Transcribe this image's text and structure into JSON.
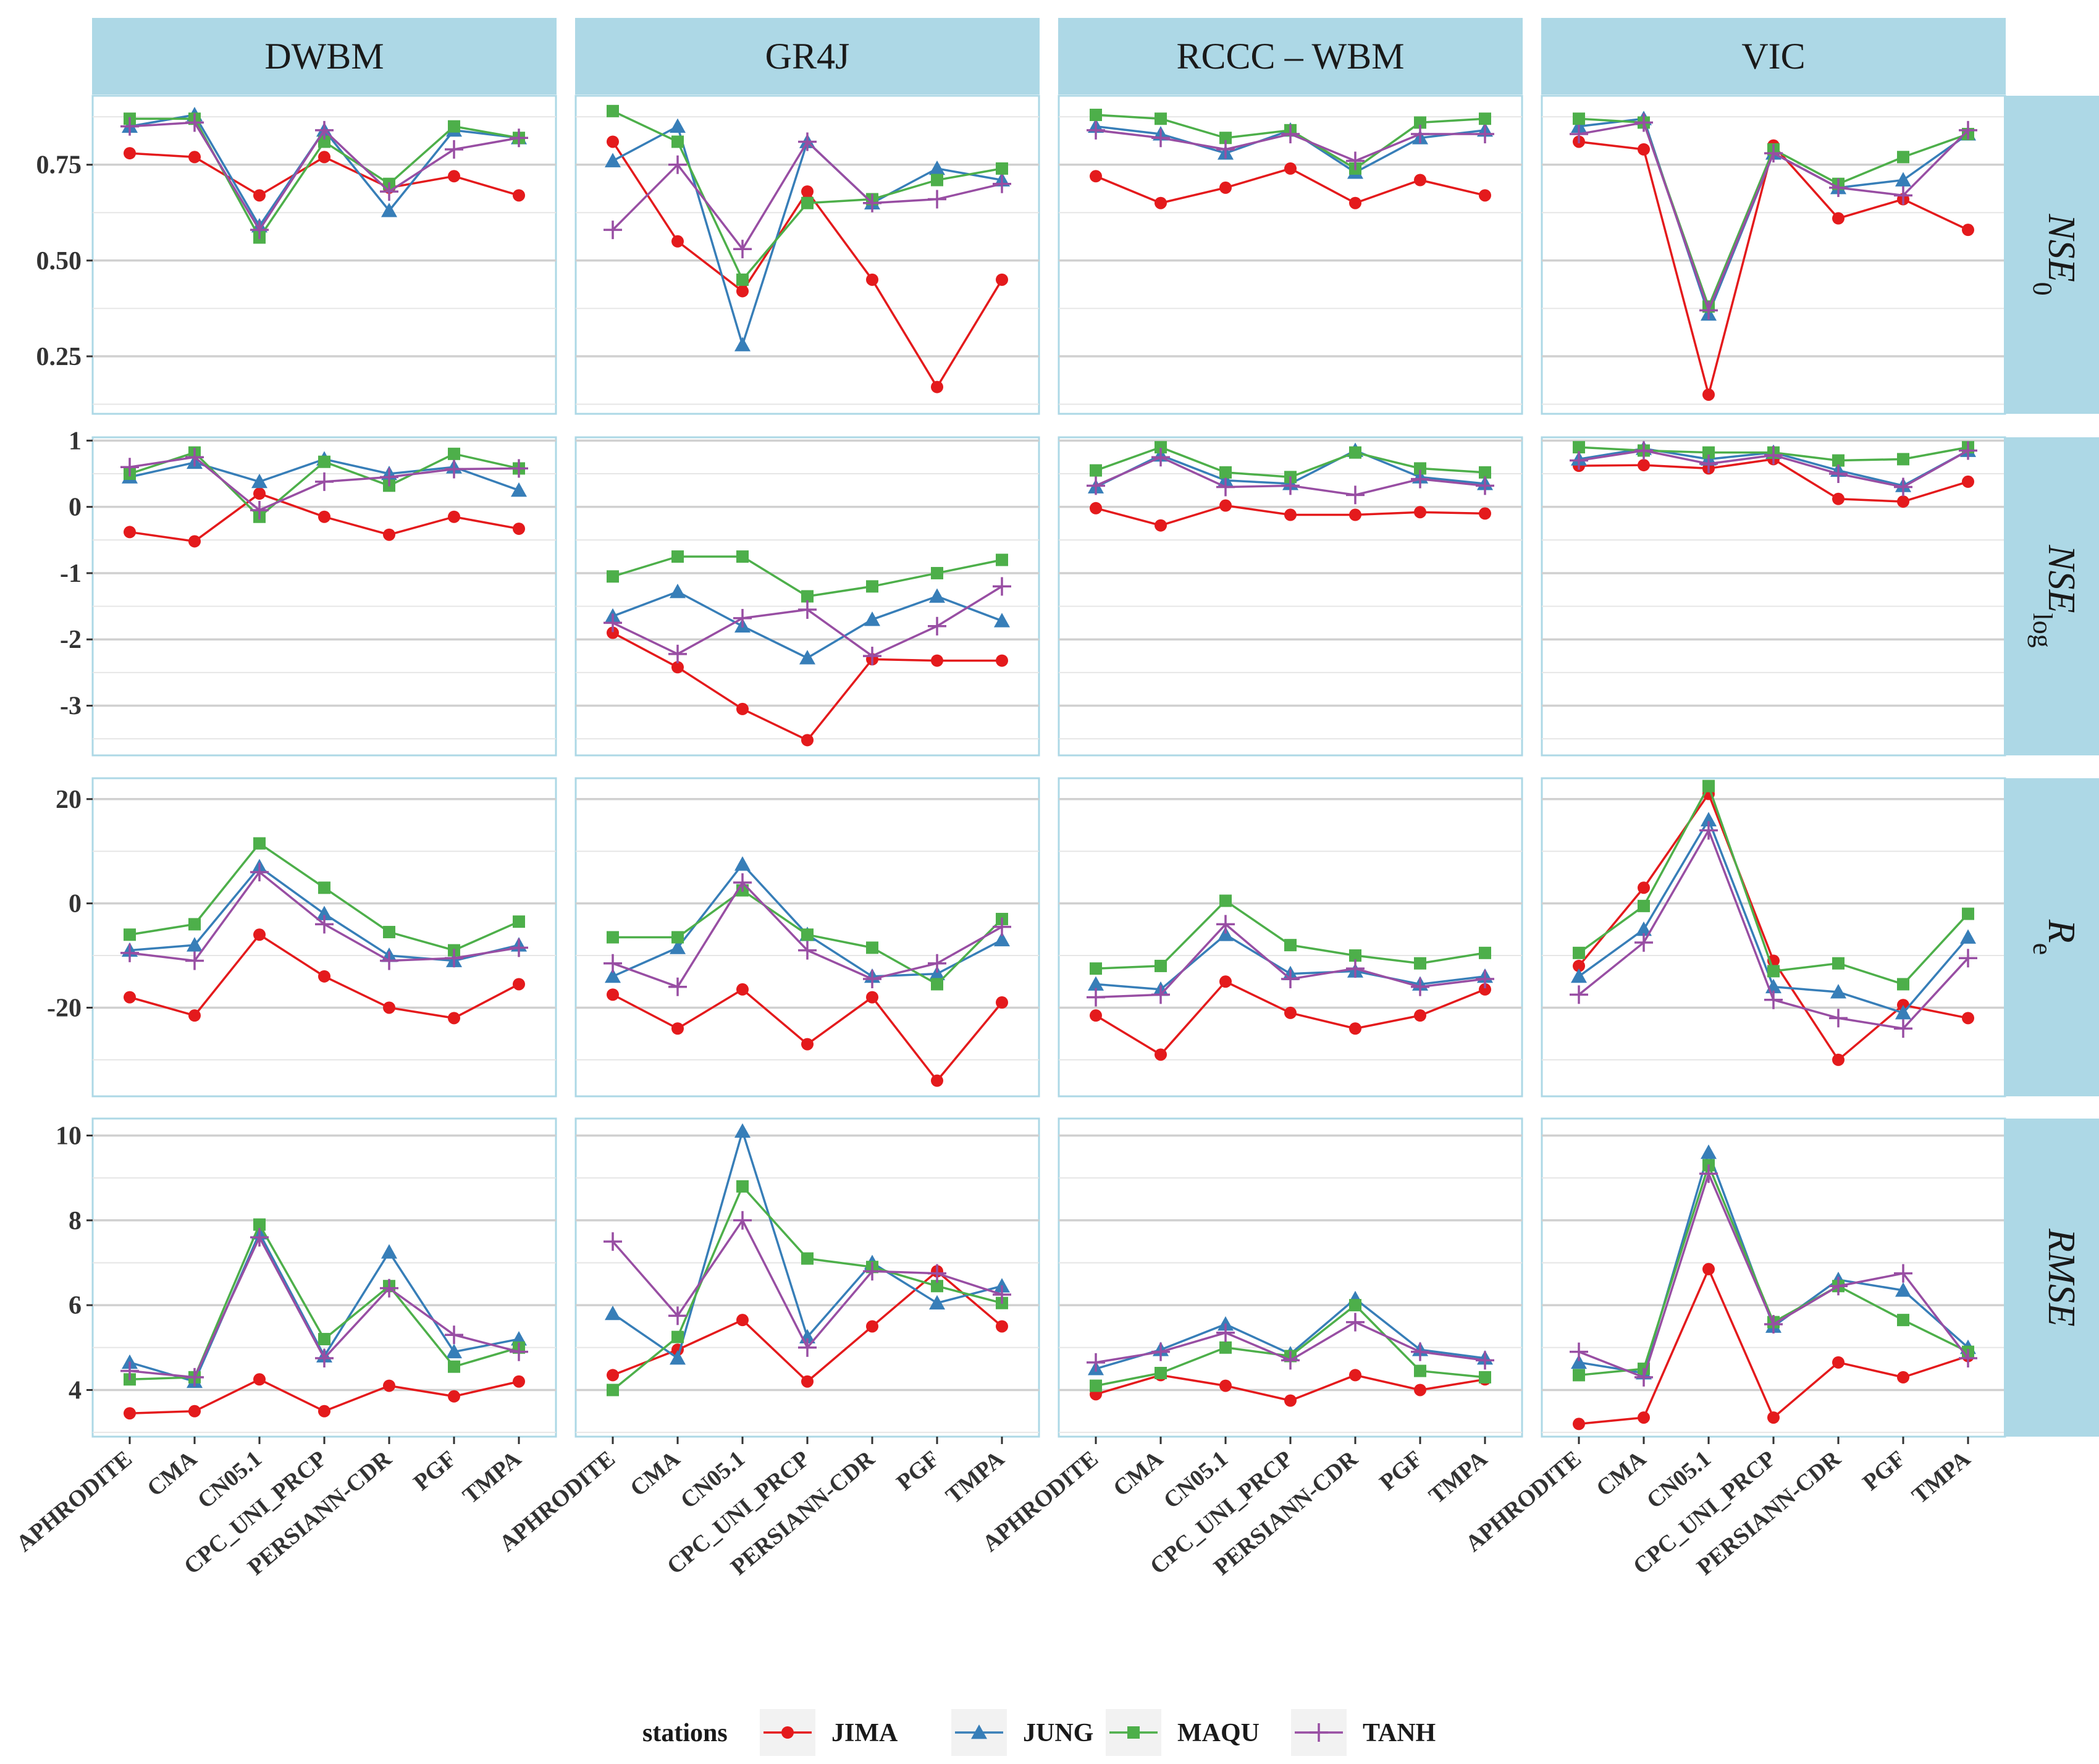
{
  "chart_data": {
    "type": "line",
    "facet_columns": [
      "DWBM",
      "GR4J",
      "RCCC – WBM",
      "VIC"
    ],
    "facet_rows": [
      {
        "name": "NSE",
        "subscript": "0",
        "ylim": [
          0.1,
          0.93
        ],
        "ticks": [
          0.25,
          0.5,
          0.75
        ],
        "tick_labels": [
          "0.25",
          "0.50",
          "0.75"
        ]
      },
      {
        "name": "NSE",
        "subscript": "log",
        "ylim": [
          -3.75,
          1.05
        ],
        "ticks": [
          -3,
          -2,
          -1,
          0,
          1
        ],
        "tick_labels": [
          "-3",
          "-2",
          "-1",
          "0",
          "1"
        ]
      },
      {
        "name": "R",
        "subscript": "e",
        "ylim": [
          -37,
          24
        ],
        "ticks": [
          -20,
          0,
          20
        ],
        "tick_labels": [
          "-20",
          "0",
          "20"
        ]
      },
      {
        "name": "RMSE",
        "subscript": "",
        "ylim": [
          2.9,
          10.4
        ],
        "ticks": [
          4,
          6,
          8,
          10
        ],
        "tick_labels": [
          "4",
          "6",
          "8",
          "10"
        ]
      }
    ],
    "categories": [
      "APHRODITE",
      "CMA",
      "CN05.1",
      "CPC_UNI_PRCP",
      "PERSIANN-CDR",
      "PGF",
      "TMPA"
    ],
    "legend": {
      "title": "stations",
      "position": "bottom",
      "series": [
        {
          "name": "JIMA",
          "color": "#E41A1C",
          "marker": "circle"
        },
        {
          "name": "JUNG",
          "color": "#377EB8",
          "marker": "triangle"
        },
        {
          "name": "MAQU",
          "color": "#4DAF4A",
          "marker": "square"
        },
        {
          "name": "TANH",
          "color": "#984EA3",
          "marker": "plus"
        }
      ]
    },
    "panels": [
      [
        {
          "JIMA": [
            0.78,
            0.77,
            0.67,
            0.77,
            0.69,
            0.72,
            0.67
          ],
          "JUNG": [
            0.85,
            0.88,
            0.59,
            0.84,
            0.63,
            0.84,
            0.82
          ],
          "MAQU": [
            0.87,
            0.87,
            0.56,
            0.81,
            0.7,
            0.85,
            0.82
          ],
          "TANH": [
            0.85,
            0.86,
            0.58,
            0.84,
            0.68,
            0.79,
            0.82
          ]
        },
        {
          "JIMA": [
            0.81,
            0.55,
            0.42,
            0.68,
            0.45,
            0.17,
            0.45
          ],
          "JUNG": [
            0.76,
            0.85,
            0.28,
            0.81,
            0.65,
            0.74,
            0.71
          ],
          "MAQU": [
            0.89,
            0.81,
            0.45,
            0.65,
            0.66,
            0.71,
            0.74
          ],
          "TANH": [
            0.58,
            0.75,
            0.53,
            0.81,
            0.65,
            0.66,
            0.7
          ]
        },
        {
          "JIMA": [
            0.72,
            0.65,
            0.69,
            0.74,
            0.65,
            0.71,
            0.67
          ],
          "JUNG": [
            0.85,
            0.83,
            0.78,
            0.84,
            0.73,
            0.82,
            0.84
          ],
          "MAQU": [
            0.88,
            0.87,
            0.82,
            0.84,
            0.74,
            0.86,
            0.87
          ],
          "TANH": [
            0.84,
            0.82,
            0.79,
            0.83,
            0.76,
            0.83,
            0.83
          ]
        },
        {
          "JIMA": [
            0.81,
            0.79,
            0.15,
            0.8,
            0.61,
            0.66,
            0.58
          ],
          "JUNG": [
            0.85,
            0.87,
            0.36,
            0.78,
            0.69,
            0.71,
            0.83
          ],
          "MAQU": [
            0.87,
            0.86,
            0.38,
            0.79,
            0.7,
            0.77,
            0.83
          ],
          "TANH": [
            0.83,
            0.86,
            0.37,
            0.78,
            0.69,
            0.67,
            0.84
          ]
        }
      ],
      [
        {
          "JIMA": [
            -0.38,
            -0.52,
            0.2,
            -0.15,
            -0.42,
            -0.15,
            -0.33
          ],
          "JUNG": [
            0.45,
            0.67,
            0.38,
            0.72,
            0.5,
            0.6,
            0.25
          ],
          "MAQU": [
            0.5,
            0.82,
            -0.15,
            0.68,
            0.32,
            0.8,
            0.58
          ],
          "TANH": [
            0.6,
            0.75,
            -0.05,
            0.38,
            0.45,
            0.57,
            0.58
          ]
        },
        {
          "JIMA": [
            -1.9,
            -2.42,
            -3.05,
            -3.52,
            -2.3,
            -2.32,
            -2.32
          ],
          "JUNG": [
            -1.65,
            -1.28,
            -1.8,
            -2.28,
            -1.7,
            -1.35,
            -1.72
          ],
          "MAQU": [
            -1.05,
            -0.75,
            -0.75,
            -1.35,
            -1.2,
            -1.0,
            -0.8
          ],
          "TANH": [
            -1.75,
            -2.22,
            -1.68,
            -1.55,
            -2.25,
            -1.8,
            -1.2
          ]
        },
        {
          "JIMA": [
            -0.02,
            -0.28,
            0.02,
            -0.12,
            -0.12,
            -0.08,
            -0.1
          ],
          "JUNG": [
            0.3,
            0.78,
            0.4,
            0.35,
            0.85,
            0.45,
            0.35
          ],
          "MAQU": [
            0.55,
            0.9,
            0.52,
            0.45,
            0.82,
            0.58,
            0.52
          ],
          "TANH": [
            0.32,
            0.75,
            0.3,
            0.32,
            0.18,
            0.42,
            0.32
          ]
        },
        {
          "JIMA": [
            0.62,
            0.63,
            0.58,
            0.72,
            0.12,
            0.08,
            0.38
          ],
          "JUNG": [
            0.72,
            0.88,
            0.72,
            0.82,
            0.55,
            0.32,
            0.85
          ],
          "MAQU": [
            0.9,
            0.85,
            0.82,
            0.82,
            0.7,
            0.72,
            0.9
          ],
          "TANH": [
            0.7,
            0.85,
            0.65,
            0.78,
            0.5,
            0.3,
            0.85
          ]
        }
      ],
      [
        {
          "JIMA": [
            -18,
            -21.5,
            -6,
            -14,
            -20,
            -22,
            -15.5
          ],
          "JUNG": [
            -9,
            -8,
            7,
            -2,
            -10,
            -11,
            -8
          ],
          "MAQU": [
            -6,
            -4,
            11.5,
            3,
            -5.5,
            -9,
            -3.5
          ],
          "TANH": [
            -9.5,
            -11,
            6,
            -4,
            -11,
            -10.5,
            -8.5
          ]
        },
        {
          "JIMA": [
            -17.5,
            -24,
            -16.5,
            -27,
            -18,
            -34,
            -19
          ],
          "JUNG": [
            -14,
            -8.5,
            7.5,
            -6,
            -14,
            -13.5,
            -7
          ],
          "MAQU": [
            -6.5,
            -6.5,
            2.5,
            -6,
            -8.5,
            -15.5,
            -3
          ],
          "TANH": [
            -11.5,
            -16,
            4,
            -9,
            -14.5,
            -11.5,
            -4.5
          ]
        },
        {
          "JIMA": [
            -21.5,
            -29,
            -15,
            -21,
            -24,
            -21.5,
            -16.5
          ],
          "JUNG": [
            -15.5,
            -16.5,
            -6,
            -13.5,
            -13,
            -15.5,
            -14
          ],
          "MAQU": [
            -12.5,
            -12,
            0.5,
            -8,
            -10,
            -11.5,
            -9.5
          ],
          "TANH": [
            -18,
            -17.5,
            -4,
            -14.5,
            -12.5,
            -16,
            -14.5
          ]
        },
        {
          "JIMA": [
            -12,
            3,
            21,
            -11,
            -30,
            -19.5,
            -22
          ],
          "JUNG": [
            -14,
            -5,
            16,
            -16,
            -17,
            -21,
            -6.5
          ],
          "MAQU": [
            -9.5,
            -0.5,
            22.5,
            -13,
            -11.5,
            -15.5,
            -2
          ],
          "TANH": [
            -17.5,
            -7.5,
            14,
            -18.5,
            -22,
            -24,
            -10.5
          ]
        }
      ],
      [
        {
          "JIMA": [
            3.45,
            3.5,
            4.25,
            3.5,
            4.1,
            3.85,
            4.2
          ],
          "JUNG": [
            4.65,
            4.2,
            7.7,
            4.8,
            7.25,
            4.9,
            5.2
          ],
          "MAQU": [
            4.25,
            4.3,
            7.9,
            5.2,
            6.45,
            4.55,
            5.0
          ],
          "TANH": [
            4.45,
            4.3,
            7.6,
            4.75,
            6.4,
            5.3,
            4.9
          ]
        },
        {
          "JIMA": [
            4.35,
            4.95,
            5.65,
            4.2,
            5.5,
            6.8,
            5.5
          ],
          "JUNG": [
            5.8,
            4.75,
            10.1,
            5.25,
            7.0,
            6.05,
            6.45
          ],
          "MAQU": [
            4.0,
            5.25,
            8.8,
            7.1,
            6.9,
            6.45,
            6.05
          ],
          "TANH": [
            7.5,
            5.75,
            8.0,
            5.0,
            6.8,
            6.75,
            6.25
          ]
        },
        {
          "JIMA": [
            3.9,
            4.35,
            4.1,
            3.75,
            4.35,
            4.0,
            4.25
          ],
          "JUNG": [
            4.5,
            4.95,
            5.55,
            4.85,
            6.15,
            4.95,
            4.75
          ],
          "MAQU": [
            4.1,
            4.4,
            5.0,
            4.8,
            6.0,
            4.45,
            4.3
          ],
          "TANH": [
            4.65,
            4.9,
            5.35,
            4.7,
            5.6,
            4.9,
            4.7
          ]
        },
        {
          "JIMA": [
            3.2,
            3.35,
            6.85,
            3.35,
            4.65,
            4.3,
            4.8
          ],
          "JUNG": [
            4.65,
            4.4,
            9.6,
            5.5,
            6.6,
            6.35,
            5.0
          ],
          "MAQU": [
            4.35,
            4.5,
            9.3,
            5.6,
            6.45,
            5.65,
            4.9
          ],
          "TANH": [
            4.9,
            4.3,
            9.1,
            5.55,
            6.45,
            6.75,
            4.75
          ]
        }
      ]
    ]
  }
}
